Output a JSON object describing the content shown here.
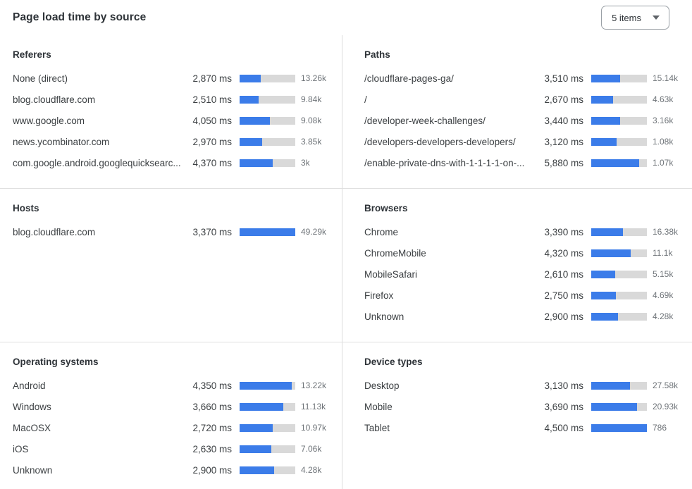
{
  "title": "Page load time by source",
  "dropdown": {
    "label": "5 items",
    "icon": "caret-down"
  },
  "colors": {
    "bar_fill": "#3B7CE9",
    "bar_track": "#D9D9D9",
    "divider": "#DCDCDC",
    "heading_text": "#2E3338",
    "label_text": "#3C4043",
    "count_text": "#6F7479"
  },
  "chart_data": [
    {
      "type": "bar",
      "panel": "Referers",
      "unit": "ms",
      "rows": [
        {
          "label": "None (direct)",
          "ms": 2870,
          "ms_label": "2,870 ms",
          "count": "13.26k",
          "bar_fraction": 0.385
        },
        {
          "label": "blog.cloudflare.com",
          "ms": 2510,
          "ms_label": "2,510 ms",
          "count": "9.84k",
          "bar_fraction": 0.337
        },
        {
          "label": "www.google.com",
          "ms": 4050,
          "ms_label": "4,050 ms",
          "count": "9.08k",
          "bar_fraction": 0.545
        },
        {
          "label": "news.ycombinator.com",
          "ms": 2970,
          "ms_label": "2,970 ms",
          "count": "3.85k",
          "bar_fraction": 0.4
        },
        {
          "label": "com.google.android.googlequicksearc...",
          "ms": 4370,
          "ms_label": "4,370 ms",
          "count": "3k",
          "bar_fraction": 0.59
        }
      ]
    },
    {
      "type": "bar",
      "panel": "Paths",
      "unit": "ms",
      "rows": [
        {
          "label": "/cloudflare-pages-ga/",
          "ms": 3510,
          "ms_label": "3,510 ms",
          "count": "15.14k",
          "bar_fraction": 0.517
        },
        {
          "label": "/",
          "ms": 2670,
          "ms_label": "2,670 ms",
          "count": "4.63k",
          "bar_fraction": 0.395
        },
        {
          "label": "/developer-week-challenges/",
          "ms": 3440,
          "ms_label": "3,440 ms",
          "count": "3.16k",
          "bar_fraction": 0.515
        },
        {
          "label": "/developers-developers-developers/",
          "ms": 3120,
          "ms_label": "3,120 ms",
          "count": "1.08k",
          "bar_fraction": 0.462
        },
        {
          "label": "/enable-private-dns-with-1-1-1-1-on-...",
          "ms": 5880,
          "ms_label": "5,880 ms",
          "count": "1.07k",
          "bar_fraction": 0.866
        }
      ]
    },
    {
      "type": "bar",
      "panel": "Hosts",
      "unit": "ms",
      "rows": [
        {
          "label": "blog.cloudflare.com",
          "ms": 3370,
          "ms_label": "3,370 ms",
          "count": "49.29k",
          "bar_fraction": 1.0
        }
      ]
    },
    {
      "type": "bar",
      "panel": "Browsers",
      "unit": "ms",
      "rows": [
        {
          "label": "Chrome",
          "ms": 3390,
          "ms_label": "3,390 ms",
          "count": "16.38k",
          "bar_fraction": 0.565
        },
        {
          "label": "ChromeMobile",
          "ms": 4320,
          "ms_label": "4,320 ms",
          "count": "11.1k",
          "bar_fraction": 0.71
        },
        {
          "label": "MobileSafari",
          "ms": 2610,
          "ms_label": "2,610 ms",
          "count": "5.15k",
          "bar_fraction": 0.43
        },
        {
          "label": "Firefox",
          "ms": 2750,
          "ms_label": "2,750 ms",
          "count": "4.69k",
          "bar_fraction": 0.445
        },
        {
          "label": "Unknown",
          "ms": 2900,
          "ms_label": "2,900 ms",
          "count": "4.28k",
          "bar_fraction": 0.475
        }
      ]
    },
    {
      "type": "bar",
      "panel": "Operating systems",
      "unit": "ms",
      "rows": [
        {
          "label": "Android",
          "ms": 4350,
          "ms_label": "4,350 ms",
          "count": "13.22k",
          "bar_fraction": 0.935
        },
        {
          "label": "Windows",
          "ms": 3660,
          "ms_label": "3,660 ms",
          "count": "11.13k",
          "bar_fraction": 0.78
        },
        {
          "label": "MacOSX",
          "ms": 2720,
          "ms_label": "2,720 ms",
          "count": "10.97k",
          "bar_fraction": 0.59
        },
        {
          "label": "iOS",
          "ms": 2630,
          "ms_label": "2,630 ms",
          "count": "7.06k",
          "bar_fraction": 0.565
        },
        {
          "label": "Unknown",
          "ms": 2900,
          "ms_label": "2,900 ms",
          "count": "4.28k",
          "bar_fraction": 0.62
        }
      ]
    },
    {
      "type": "bar",
      "panel": "Device types",
      "unit": "ms",
      "rows": [
        {
          "label": "Desktop",
          "ms": 3130,
          "ms_label": "3,130 ms",
          "count": "27.58k",
          "bar_fraction": 0.695
        },
        {
          "label": "Mobile",
          "ms": 3690,
          "ms_label": "3,690 ms",
          "count": "20.93k",
          "bar_fraction": 0.818
        },
        {
          "label": "Tablet",
          "ms": 4500,
          "ms_label": "4,500 ms",
          "count": "786",
          "bar_fraction": 1.0
        }
      ]
    }
  ]
}
